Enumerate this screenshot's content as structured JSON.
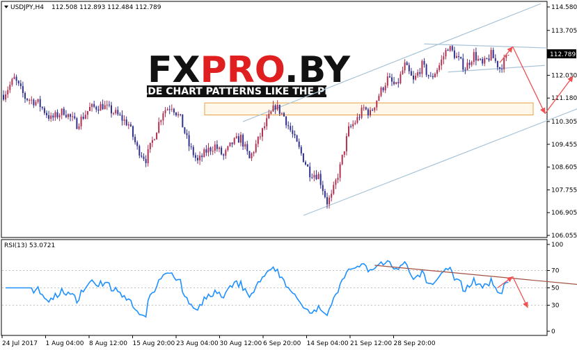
{
  "main_header": {
    "symbol": "USDJPY,H4",
    "ohlc": "112.508 112.893 112.484 112.789"
  },
  "rsi_header": "RSI(13) 53.0721",
  "current_price_label": "112.789",
  "watermark": {
    "logo_text": "FXPRO.BY",
    "logo_parts": [
      "FX",
      "PRO",
      ".BY"
    ],
    "tagline": "TRADE CHART PATTERNS LIKE THE PROS",
    "logo_colors": {
      "dark": "#111111",
      "red": "#e02020"
    }
  },
  "colors": {
    "bull_candle": "#b03050",
    "bear_candle": "#303090",
    "rsi_line": "#1e90ff",
    "channel_line": "#a8c4d8",
    "rsi_trendline": "#a05040",
    "arrows": "#f05050",
    "zone_fill": "#fff8ea",
    "zone_stroke": "#e8a040"
  },
  "chart_data": [
    {
      "type": "candlestick",
      "title": "USDJPY,H4",
      "y_ticks": [
        "114.580",
        "113.705",
        "112.030",
        "111.180",
        "110.305",
        "109.455",
        "108.605",
        "107.755",
        "106.905",
        "106.055"
      ],
      "y_tick_values": [
        114.58,
        113.705,
        112.03,
        111.18,
        110.305,
        109.455,
        108.605,
        107.755,
        106.905,
        106.055
      ],
      "ylim": [
        106.055,
        114.58
      ],
      "x_ticks": [
        "24 Jul 2017",
        "1 Aug 04:00",
        "8 Aug 12:00",
        "15 Aug 20:00",
        "23 Aug 04:00",
        "30 Aug 12:00",
        "6 Sep 20:00",
        "14 Sep 04:00",
        "21 Sep 12:00",
        "28 Sep 20:00"
      ],
      "bar_count": 250,
      "close_path": [
        [
          0,
          111.3
        ],
        [
          5,
          111.9
        ],
        [
          10,
          111.2
        ],
        [
          16,
          111.0
        ],
        [
          22,
          110.4
        ],
        [
          28,
          110.7
        ],
        [
          34,
          110.2
        ],
        [
          40,
          110.8
        ],
        [
          46,
          110.9
        ],
        [
          52,
          110.6
        ],
        [
          58,
          110.2
        ],
        [
          62,
          109.3
        ],
        [
          66,
          108.9
        ],
        [
          70,
          109.8
        ],
        [
          74,
          110.7
        ],
        [
          78,
          110.9
        ],
        [
          82,
          110.4
        ],
        [
          86,
          109.4
        ],
        [
          90,
          108.8
        ],
        [
          94,
          109.2
        ],
        [
          98,
          109.4
        ],
        [
          102,
          109.0
        ],
        [
          106,
          109.5
        ],
        [
          110,
          109.7
        ],
        [
          114,
          108.9
        ],
        [
          118,
          109.6
        ],
        [
          122,
          110.3
        ],
        [
          126,
          110.9
        ],
        [
          130,
          110.5
        ],
        [
          134,
          109.8
        ],
        [
          138,
          109.1
        ],
        [
          142,
          108.4
        ],
        [
          146,
          108.3
        ],
        [
          150,
          107.3
        ],
        [
          152,
          107.5
        ],
        [
          156,
          108.6
        ],
        [
          160,
          110.0
        ],
        [
          164,
          110.4
        ],
        [
          167,
          110.8
        ],
        [
          170,
          110.6
        ],
        [
          174,
          111.3
        ],
        [
          178,
          111.9
        ],
        [
          182,
          111.6
        ],
        [
          186,
          112.4
        ],
        [
          190,
          111.8
        ],
        [
          194,
          112.4
        ],
        [
          198,
          111.9
        ],
        [
          202,
          112.4
        ],
        [
          206,
          113.1
        ],
        [
          210,
          112.7
        ],
        [
          214,
          112.3
        ],
        [
          218,
          112.8
        ],
        [
          222,
          112.4
        ],
        [
          226,
          112.8
        ],
        [
          230,
          112.3
        ],
        [
          234,
          112.789
        ]
      ],
      "channel": {
        "lower": [
          [
            139,
            106.8
          ],
          [
            281,
            111.25
          ]
        ],
        "upper": [
          [
            111,
            110.3
          ],
          [
            249,
            114.7
          ]
        ]
      },
      "wedge": {
        "upper": [
          [
            195,
            113.2
          ],
          [
            252,
            113.05
          ]
        ],
        "lower": [
          [
            206,
            112.15
          ],
          [
            251,
            112.4
          ]
        ]
      },
      "resistance_zone": [
        110.55,
        111.0
      ],
      "projection_arrows": [
        [
          [
            230,
            112.5
          ],
          [
            236,
            113.1
          ]
        ],
        [
          [
            236,
            113.1
          ],
          [
            251,
            110.6
          ]
        ],
        [
          [
            251,
            110.6
          ],
          [
            264,
            112.0
          ]
        ]
      ]
    },
    {
      "type": "line",
      "title": "RSI(13) 53.0721",
      "y_ticks": [
        "100",
        "70",
        "50",
        "30",
        "0"
      ],
      "ylim": [
        0,
        100
      ],
      "levels": [
        30,
        50,
        70
      ],
      "trendline": [
        [
          172,
          76
        ],
        [
          270,
          53
        ]
      ],
      "projection_arrows": [
        [
          [
            229,
            50
          ],
          [
            236,
            63
          ]
        ],
        [
          [
            236,
            63
          ],
          [
            243,
            27
          ]
        ]
      ]
    }
  ]
}
